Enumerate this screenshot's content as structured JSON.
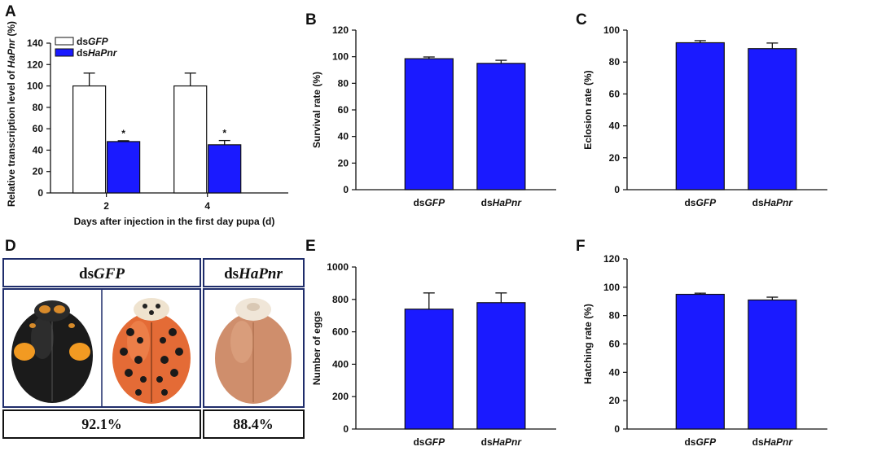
{
  "colors": {
    "blue": "#1a1aff",
    "border": "#1f2d6b"
  },
  "panels": {
    "A": "A",
    "B": "B",
    "C": "C",
    "D": "D",
    "E": "E",
    "F": "F"
  },
  "chart_data": [
    {
      "id": "A",
      "type": "bar",
      "ylabel_pre": "Relative transcription level of ",
      "ylabel_italic": "HaPnr",
      "ylabel_post": " (%)",
      "xlabel": "Days after injection in the first day pupa (d)",
      "categories": [
        "2",
        "4"
      ],
      "ylim": [
        0,
        140
      ],
      "yticks": [
        0,
        20,
        40,
        60,
        80,
        100,
        120,
        140
      ],
      "series": [
        {
          "name_pre": "ds",
          "name_italic": "GFP",
          "values": [
            100,
            100
          ],
          "errors": [
            12,
            12
          ],
          "fill": "#ffffff"
        },
        {
          "name_pre": "ds",
          "name_italic": "HaPnr",
          "values": [
            48,
            45
          ],
          "errors": [
            0.8,
            4
          ],
          "fill": "#1a1aff"
        }
      ],
      "annotations": [
        "*",
        "*"
      ]
    },
    {
      "id": "B",
      "type": "bar",
      "ylabel": "Survival rate (%)",
      "categories_pre": [
        "ds",
        "ds"
      ],
      "categories_italic": [
        "GFP",
        "HaPnr"
      ],
      "values": [
        98.5,
        95
      ],
      "errors": [
        1.3,
        2.3
      ],
      "ylim": [
        0,
        120
      ],
      "yticks": [
        0,
        20,
        40,
        60,
        80,
        100,
        120
      ]
    },
    {
      "id": "C",
      "type": "bar",
      "ylabel": "Eclosion rate (%)",
      "categories_pre": [
        "ds",
        "ds"
      ],
      "categories_italic": [
        "GFP",
        "HaPnr"
      ],
      "values": [
        92.1,
        88.4
      ],
      "errors": [
        1.3,
        3.5
      ],
      "ylim": [
        0,
        100
      ],
      "yticks": [
        0,
        20,
        40,
        60,
        80,
        100
      ]
    },
    {
      "id": "E",
      "type": "bar",
      "ylabel": "Number of eggs",
      "categories_pre": [
        "ds",
        "ds"
      ],
      "categories_italic": [
        "GFP",
        "HaPnr"
      ],
      "values": [
        740,
        780
      ],
      "errors": [
        100,
        60
      ],
      "ylim": [
        0,
        1000
      ],
      "yticks": [
        0,
        200,
        400,
        600,
        800,
        1000
      ]
    },
    {
      "id": "F",
      "type": "bar",
      "ylabel": "Hatching rate (%)",
      "categories_pre": [
        "ds",
        "ds"
      ],
      "categories_italic": [
        "GFP",
        "HaPnr"
      ],
      "values": [
        95,
        91
      ],
      "errors": [
        0.8,
        2
      ],
      "ylim": [
        0,
        120
      ],
      "yticks": [
        0,
        20,
        40,
        60,
        80,
        100,
        120
      ]
    }
  ],
  "photo_panel": {
    "head_left_pre": "ds",
    "head_left_italic": "GFP",
    "head_right_pre": "ds",
    "head_right_italic": "HaPnr",
    "pct_left": "92.1%",
    "pct_right": "88.4%"
  }
}
